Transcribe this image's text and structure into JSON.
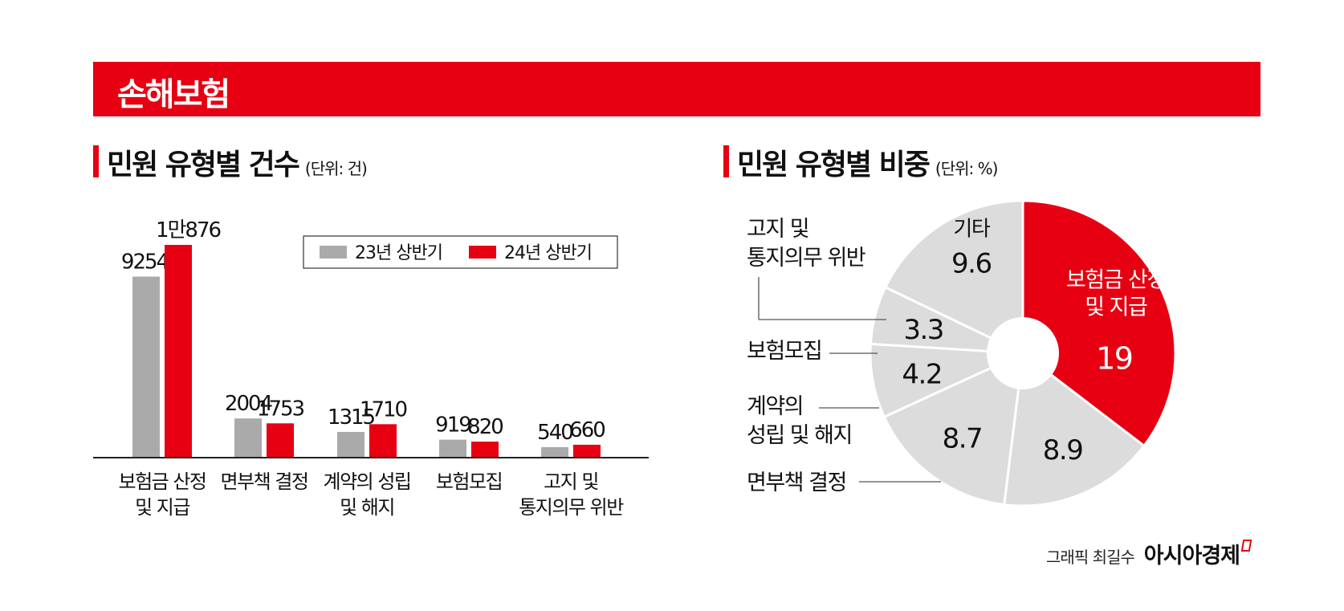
{
  "banner": {
    "title": "손해보험"
  },
  "left_section": {
    "title": "민원 유형별 건수",
    "unit": "(단위: 건)"
  },
  "right_section": {
    "title": "민원 유형별 비중",
    "unit": "(단위: %)"
  },
  "credit": {
    "text": "그래픽 최길수",
    "brand": "아시아경제"
  },
  "colors": {
    "accent": "#e60012",
    "gray_bar": "#aaaaaa",
    "pie_gray": "#dcdcdc",
    "white": "#ffffff"
  },
  "chart_data": [
    {
      "type": "bar",
      "title": "민원 유형별 건수",
      "unit": "(단위: 건)",
      "legend_position": "top-right",
      "categories": [
        [
          "보험금 산정",
          "및 지급"
        ],
        [
          "면부책 결정"
        ],
        [
          "계약의 성립",
          "및 해지"
        ],
        [
          "보험모집"
        ],
        [
          "고지 및",
          "통지의무 위반"
        ]
      ],
      "series": [
        {
          "name": "23년 상반기",
          "color": "#aaaaaa",
          "values": [
            9254,
            2004,
            1315,
            919,
            540
          ],
          "labels": [
            "9254",
            "2004",
            "1315",
            "919",
            "540"
          ]
        },
        {
          "name": "24년 상반기",
          "color": "#e60012",
          "values": [
            10876,
            1753,
            1710,
            820,
            660
          ],
          "labels": [
            "1만876",
            "1753",
            "1710",
            "820",
            "660"
          ]
        }
      ],
      "ylim": [
        0,
        10876
      ]
    },
    {
      "type": "pie",
      "title": "민원 유형별 비중",
      "unit": "(단위: %)",
      "slices": [
        {
          "inside_label": [
            "보험금 산정",
            "및 지급"
          ],
          "value": 19,
          "value_label": "19",
          "color": "#e60012"
        },
        {
          "outside_label": [
            "면부책 결정"
          ],
          "value": 8.9,
          "value_label": "8.9",
          "color": "#dcdcdc"
        },
        {
          "outside_label": [
            "계약의",
            "성립 및 해지"
          ],
          "value": 8.7,
          "value_label": "8.7",
          "color": "#dcdcdc"
        },
        {
          "outside_label": [
            "보험모집"
          ],
          "value": 4.2,
          "value_label": "4.2",
          "color": "#dcdcdc"
        },
        {
          "outside_label": [
            "고지 및",
            "통지의무 위반"
          ],
          "value": 3.3,
          "value_label": "3.3",
          "color": "#dcdcdc"
        },
        {
          "inside_label": [
            "기타"
          ],
          "value": 9.6,
          "value_label": "9.6",
          "color": "#dcdcdc"
        }
      ]
    }
  ]
}
